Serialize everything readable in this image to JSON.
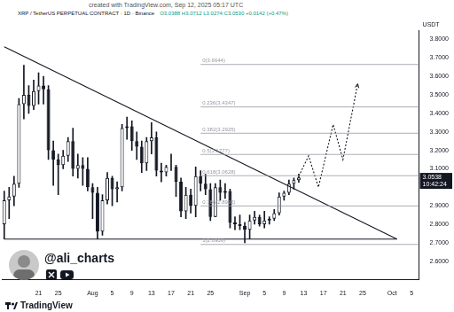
{
  "page": {
    "created": "created with TradingView.com, Sep 12, 2025 05:17 UTC",
    "watermark": "@ali_charts",
    "footer": "TradingView"
  },
  "chart_data": {
    "type": "candlestick",
    "title": "XRP / TetherUS PERPETUAL CONTRACT · 1D · Binance",
    "subtitle": "O3.0388 H3.0712 L3.0274 C3.0530 +0.0142 (+0.47%)",
    "y_label": "USDT",
    "color": "#131722",
    "grid": false,
    "categories": [
      null,
      null,
      null,
      null,
      null,
      null,
      null,
      "21",
      null,
      null,
      null,
      "25",
      null,
      null,
      null,
      null,
      null,
      null,
      "Aug",
      null,
      null,
      null,
      "5",
      null,
      null,
      null,
      "9",
      null,
      null,
      null,
      "13",
      null,
      null,
      null,
      "17",
      null,
      null,
      null,
      "21",
      null,
      null,
      null,
      "25",
      null,
      null,
      null,
      null,
      null,
      null,
      "Sep",
      null,
      null,
      null,
      "5",
      null,
      null,
      null,
      "9",
      null,
      null,
      null,
      "13",
      null,
      null,
      null,
      "17",
      null,
      null,
      null,
      "21",
      null,
      null,
      null,
      "25",
      null,
      null,
      null,
      null,
      null,
      "Oct",
      null,
      null,
      null,
      "5",
      null
    ],
    "open": [
      2.8,
      2.93,
      2.95,
      3.02,
      3.45,
      3.5,
      3.44,
      3.52,
      3.55,
      3.53,
      3.2,
      3.15,
      3.12,
      3.17,
      3.25,
      3.1,
      3.12,
      3.1,
      3.0,
      2.97,
      2.76,
      2.93,
      3.05,
      2.99,
      3.0,
      3.32,
      3.33,
      3.25,
      3.22,
      3.13,
      3.25,
      3.27,
      3.09,
      3.08,
      3.11,
      3.11,
      3.03,
      2.87,
      2.96,
      2.9,
      3.06,
      3.02,
      2.99,
      2.84,
      3.0,
      2.97,
      2.98,
      2.81,
      2.8,
      2.79,
      2.77,
      2.82,
      2.84,
      2.8,
      2.82,
      2.83,
      2.86,
      2.95,
      2.97,
      3.02,
      3.0388,
      null,
      null,
      null,
      null,
      null,
      null,
      null,
      null,
      null,
      null,
      null,
      null,
      null,
      null,
      null,
      null,
      null,
      null,
      null,
      null,
      null,
      null,
      null,
      null
    ],
    "high": [
      2.98,
      3.0,
      3.06,
      3.48,
      3.66,
      3.55,
      3.58,
      3.62,
      3.6,
      3.55,
      3.25,
      3.18,
      3.2,
      3.27,
      3.32,
      3.18,
      3.16,
      3.16,
      3.02,
      3.0,
      2.96,
      3.08,
      3.06,
      3.03,
      3.34,
      3.38,
      3.36,
      3.3,
      3.25,
      3.27,
      3.35,
      3.3,
      3.13,
      3.12,
      3.18,
      3.12,
      3.05,
      3.0,
      2.99,
      3.11,
      3.09,
      3.07,
      3.02,
      3.02,
      3.04,
      3.02,
      2.99,
      2.84,
      2.85,
      2.81,
      2.85,
      2.87,
      2.85,
      2.87,
      2.84,
      2.88,
      2.97,
      2.98,
      3.04,
      3.05,
      3.0712,
      null,
      null,
      null,
      null,
      null,
      null,
      null,
      null,
      null,
      null,
      null,
      null,
      null,
      null,
      null,
      null,
      null,
      null,
      null,
      null,
      null,
      null,
      null,
      null
    ],
    "low": [
      2.72,
      2.83,
      2.9,
      3.0,
      3.37,
      3.4,
      3.42,
      3.45,
      3.45,
      3.15,
      3.01,
      2.96,
      3.1,
      3.14,
      3.06,
      3.05,
      3.01,
      2.98,
      2.83,
      2.72,
      2.74,
      2.91,
      2.9,
      2.92,
      2.98,
      3.26,
      3.2,
      3.15,
      3.08,
      3.09,
      3.18,
      3.06,
      3.03,
      3.06,
      3.09,
      2.95,
      2.84,
      2.83,
      2.86,
      2.84,
      2.98,
      2.96,
      2.82,
      2.84,
      2.93,
      2.94,
      2.78,
      2.77,
      2.77,
      2.7,
      2.72,
      2.8,
      2.79,
      2.78,
      2.8,
      2.82,
      2.85,
      2.93,
      2.96,
      2.99,
      3.0274,
      null,
      null,
      null,
      null,
      null,
      null,
      null,
      null,
      null,
      null,
      null,
      null,
      null,
      null,
      null,
      null,
      null,
      null,
      null,
      null,
      null,
      null,
      null,
      null
    ],
    "close": [
      2.93,
      2.95,
      3.02,
      3.45,
      3.5,
      3.44,
      3.52,
      3.55,
      3.53,
      3.2,
      3.15,
      3.12,
      3.17,
      3.25,
      3.1,
      3.12,
      3.1,
      3.0,
      2.97,
      2.76,
      2.93,
      3.05,
      2.99,
      3.0,
      3.32,
      3.33,
      3.25,
      3.22,
      3.13,
      3.25,
      3.27,
      3.09,
      3.08,
      3.11,
      3.11,
      3.03,
      2.87,
      2.96,
      2.9,
      3.06,
      3.02,
      2.99,
      2.84,
      3.0,
      2.97,
      2.98,
      2.81,
      2.8,
      2.79,
      2.77,
      2.82,
      2.84,
      2.8,
      2.82,
      2.83,
      2.86,
      2.95,
      2.97,
      3.02,
      3.0388,
      3.053,
      null,
      null,
      null,
      null,
      null,
      null,
      null,
      null,
      null,
      null,
      null,
      null,
      null,
      null,
      null,
      null,
      null,
      null,
      null,
      null,
      null,
      null,
      null,
      null
    ],
    "lines": [
      {
        "color": "#131722",
        "line_style": "solid",
        "values": [
          3.76,
          null,
          null,
          null,
          null,
          null,
          null,
          null,
          null,
          null,
          null,
          null,
          null,
          null,
          null,
          null,
          null,
          null,
          null,
          null,
          null,
          null,
          null,
          null,
          null,
          null,
          null,
          null,
          null,
          null,
          null,
          null,
          null,
          null,
          null,
          null,
          null,
          null,
          null,
          null,
          null,
          null,
          null,
          null,
          null,
          null,
          null,
          null,
          null,
          null,
          null,
          null,
          null,
          null,
          null,
          null,
          null,
          null,
          null,
          null,
          null,
          null,
          null,
          null,
          null,
          null,
          null,
          null,
          null,
          null,
          null,
          null,
          null,
          null,
          null,
          null,
          null,
          null,
          null,
          null,
          2.72,
          null,
          null,
          null,
          null
        ]
      },
      {
        "color": "#131722",
        "line_style": "solid",
        "values": [
          2.72,
          null,
          null,
          null,
          null,
          null,
          null,
          null,
          null,
          null,
          null,
          null,
          null,
          null,
          null,
          null,
          null,
          null,
          null,
          null,
          null,
          null,
          null,
          null,
          null,
          null,
          null,
          null,
          null,
          null,
          null,
          null,
          null,
          null,
          null,
          null,
          null,
          null,
          null,
          null,
          null,
          null,
          null,
          null,
          null,
          null,
          null,
          null,
          null,
          null,
          null,
          null,
          null,
          null,
          null,
          null,
          null,
          null,
          null,
          null,
          null,
          null,
          null,
          null,
          null,
          null,
          null,
          null,
          null,
          null,
          null,
          null,
          null,
          null,
          null,
          null,
          null,
          null,
          null,
          null,
          2.72,
          null,
          null,
          null,
          null
        ]
      },
      {
        "color": "#131722",
        "line_style": "dotted",
        "values": [
          null,
          null,
          null,
          null,
          null,
          null,
          null,
          null,
          null,
          null,
          null,
          null,
          null,
          null,
          null,
          null,
          null,
          null,
          null,
          null,
          null,
          null,
          null,
          null,
          null,
          null,
          null,
          null,
          null,
          null,
          null,
          null,
          null,
          null,
          null,
          null,
          null,
          null,
          null,
          null,
          null,
          null,
          null,
          null,
          null,
          null,
          null,
          null,
          null,
          null,
          null,
          null,
          null,
          null,
          null,
          null,
          null,
          null,
          null,
          null,
          3.06,
          null,
          3.17,
          null,
          3.0,
          null,
          null,
          3.34,
          null,
          3.15,
          null,
          null,
          3.56,
          null,
          null,
          null,
          null,
          null,
          null,
          null,
          null,
          null,
          null,
          null,
          null
        ]
      }
    ],
    "fib_levels": [
      {
        "value": 3.6644,
        "label": "0(3.6644)",
        "color": "#9598a1"
      },
      {
        "value": 3.4347,
        "label": "0.236(3.4347)",
        "color": "#9598a1"
      },
      {
        "value": 3.2925,
        "label": "0.382(3.2925)",
        "color": "#9598a1"
      },
      {
        "value": 3.1777,
        "label": "0.5(3.1777)",
        "color": "#9598a1"
      },
      {
        "value": 3.0628,
        "label": "0.618(3.0628)",
        "color": "#9598a1"
      },
      {
        "value": 2.8992,
        "label": "0.786(2.8992)",
        "color": "#9598a1"
      },
      {
        "value": 2.6909,
        "label": "1(2.6909)",
        "color": "#9598a1"
      }
    ],
    "price_tag": {
      "value": 3.0538,
      "countdown": "10:42:24"
    },
    "ylim": [
      2.5,
      3.85
    ],
    "yticks": [
      {
        "value": 2.6,
        "label": "2.6000"
      },
      {
        "value": 2.7,
        "label": "2.7000"
      },
      {
        "value": 2.8,
        "label": "2.8000"
      },
      {
        "value": 2.9,
        "label": "2.9000"
      },
      {
        "value": 3.1,
        "label": "3.1000"
      },
      {
        "value": 3.2,
        "label": "3.2000"
      },
      {
        "value": 3.3,
        "label": "3.3000"
      },
      {
        "value": 3.4,
        "label": "3.4000"
      },
      {
        "value": 3.5,
        "label": "3.5000"
      },
      {
        "value": 3.6,
        "label": "3.6000"
      },
      {
        "value": 3.7,
        "label": "3.7000"
      },
      {
        "value": 3.8,
        "label": "3.8000"
      }
    ]
  }
}
